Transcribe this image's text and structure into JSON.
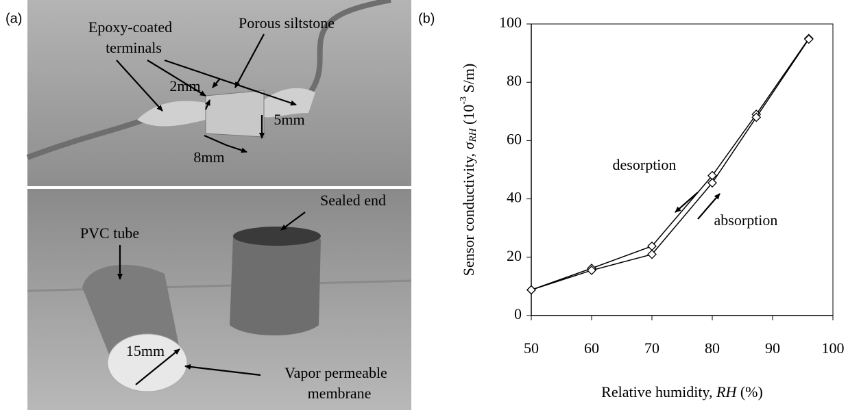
{
  "photo": {
    "label": "(a)",
    "labels": [
      "Epoxy-coated",
      "terminals",
      "Porous siltstone",
      "2mm",
      "5mm",
      "8mm",
      "PVC tube",
      "Sealed end",
      "15mm",
      "Vapor permeable",
      "membrane"
    ]
  },
  "chart_data": {
    "type": "line",
    "panel_label": "(b)",
    "xlabel": [
      "Relative humidity, ",
      "RH",
      " (%)"
    ],
    "ylabel": [
      "Sensor conductivity, ",
      "σ",
      "RH",
      " (10",
      "-3",
      " S/m)"
    ],
    "x": [
      50,
      60,
      70,
      80,
      87.3,
      96
    ],
    "series": [
      {
        "name": "desorption",
        "color": "#000000",
        "values": [
          8.8,
          16.2,
          23.8,
          48,
          69,
          95
        ]
      },
      {
        "name": "absorption",
        "color": "#000000",
        "values": [
          8.8,
          15.5,
          21,
          45.5,
          68,
          94.8
        ]
      }
    ],
    "xlim": [
      50,
      100
    ],
    "xticks": [
      50,
      60,
      70,
      80,
      90,
      100
    ],
    "ylim": [
      0,
      100
    ],
    "yticks": [
      0,
      20,
      40,
      60,
      80,
      100
    ],
    "grid": false
  }
}
